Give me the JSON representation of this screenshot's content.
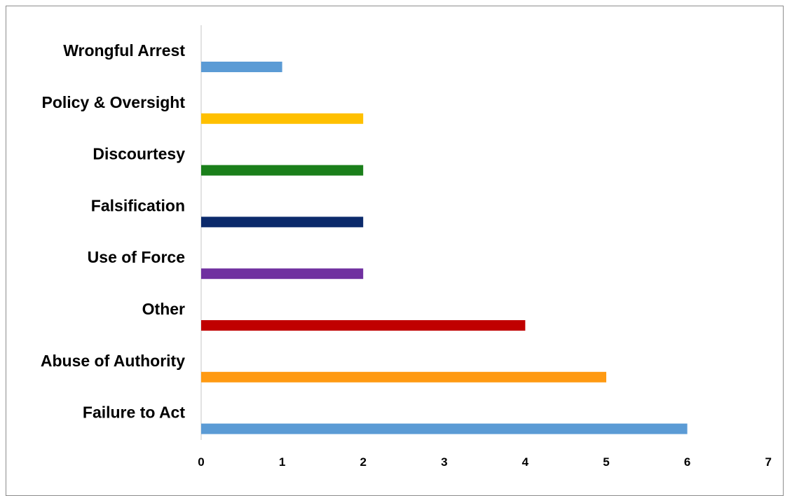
{
  "chart_data": {
    "type": "bar",
    "orientation": "horizontal",
    "title": "",
    "xlabel": "",
    "ylabel": "",
    "categories": [
      "Wrongful Arrest",
      "Policy & Oversight",
      "Discourtesy",
      "Falsification",
      "Use of Force",
      "Other",
      "Abuse of Authority",
      "Failure to Act"
    ],
    "values": [
      1,
      2,
      2,
      2,
      2,
      4,
      5,
      6
    ],
    "colors": [
      "#5b9bd5",
      "#ffc000",
      "#1a7f1a",
      "#0b2a6b",
      "#7030a0",
      "#c00000",
      "#ff9a12",
      "#5b9bd5"
    ],
    "xlim": [
      0,
      7
    ],
    "xticks": [
      "0",
      "1",
      "2",
      "3",
      "4",
      "5",
      "6",
      "7"
    ],
    "grid": false,
    "legend": "none"
  }
}
